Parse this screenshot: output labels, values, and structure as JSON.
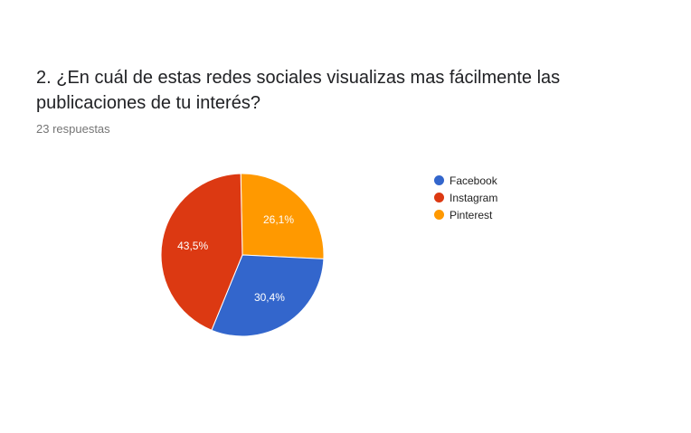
{
  "question": {
    "title": "2. ¿En cuál de estas redes sociales visualizas mas fácilmente las publicaciones de tu interés?",
    "response_count": "23 respuestas"
  },
  "chart_data": {
    "type": "pie",
    "categories": [
      "Facebook",
      "Instagram",
      "Pinterest"
    ],
    "values": [
      30.4,
      43.5,
      26.1
    ],
    "labels": [
      "30,4%",
      "43,5%",
      "26,1%"
    ],
    "colors": [
      "#3366cc",
      "#dc3912",
      "#ff9900"
    ],
    "legend_position": "right",
    "title": "",
    "slice_order": [
      "Pinterest",
      "Facebook",
      "Instagram"
    ]
  }
}
